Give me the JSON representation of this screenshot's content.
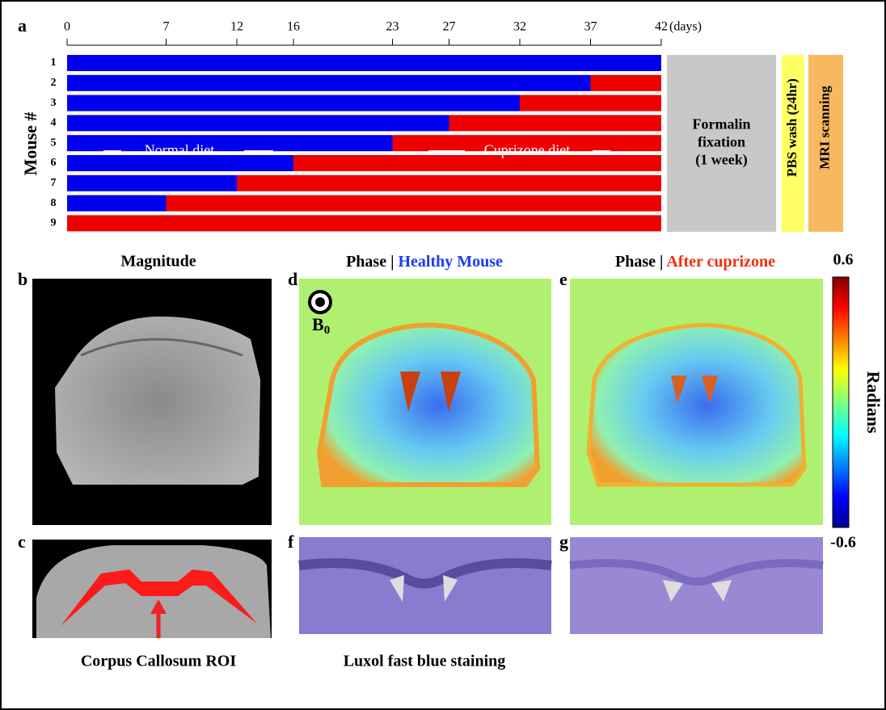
{
  "panel_a": {
    "label": "a",
    "axis_unit": "(days)",
    "xlim": [
      0,
      42
    ],
    "xticks": [
      0,
      7,
      12,
      16,
      23,
      27,
      32,
      37,
      42
    ],
    "y_label": "Mouse #",
    "mice": [
      "1",
      "2",
      "3",
      "4",
      "5",
      "6",
      "7",
      "8",
      "9"
    ],
    "switch_day": [
      42,
      37,
      32,
      27,
      23,
      16,
      12,
      7,
      0
    ],
    "normal_color": "#0000ee",
    "cuprizone_color": "#ee0000",
    "normal_label": "Normal diet",
    "cuprizone_label": "Cuprizone diet",
    "steps": [
      {
        "lines": [
          "Formalin",
          "fixation",
          "(1 week)"
        ],
        "color": "#c8c8c8"
      },
      {
        "lines": [
          "PBS wash (24hr)"
        ],
        "color": "#ffff66"
      },
      {
        "lines": [
          "MRI scanning"
        ],
        "color": "#f8b860"
      }
    ]
  },
  "panel_b": {
    "label": "b",
    "title": "Magnitude"
  },
  "panel_c": {
    "label": "c",
    "caption": "Corpus Callosum ROI"
  },
  "panel_d": {
    "label": "d",
    "title_prefix": "Phase |",
    "title_highlight": "Healthy Mouse",
    "field_symbol": "B",
    "field_subscript": "0"
  },
  "panel_e": {
    "label": "e",
    "title_prefix": "Phase |",
    "title_highlight": "After cuprizone"
  },
  "colorbar": {
    "lim": [
      -0.6,
      0.6
    ],
    "label": "Radians"
  },
  "panel_f": {
    "label": "f",
    "caption": "Luxol fast blue staining"
  },
  "panel_g": {
    "label": "g"
  }
}
